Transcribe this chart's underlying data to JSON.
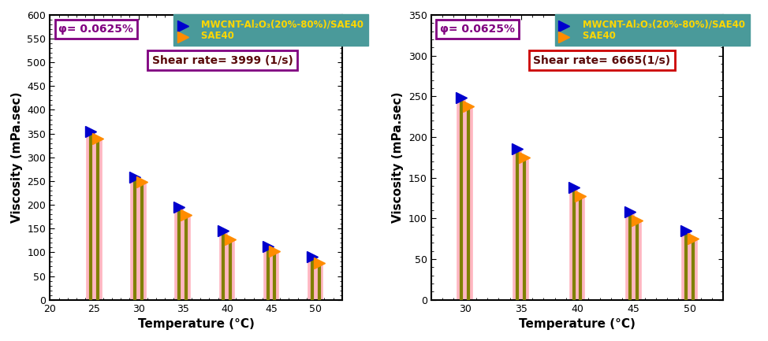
{
  "plot1": {
    "title": "Shear rate= 3999 (1/s)",
    "shear_rate_box_color": "#800080",
    "temperatures": [
      25,
      30,
      35,
      40,
      45,
      50
    ],
    "nanofluid_values": [
      355,
      258,
      195,
      145,
      113,
      90
    ],
    "basefluid_values": [
      340,
      248,
      178,
      127,
      103,
      78
    ],
    "xlim": [
      20,
      53
    ],
    "ylim": [
      0,
      600
    ],
    "yticks": [
      0,
      50,
      100,
      150,
      200,
      250,
      300,
      350,
      400,
      450,
      500,
      550,
      600
    ],
    "xticks": [
      20,
      25,
      30,
      35,
      40,
      45,
      50
    ]
  },
  "plot2": {
    "title": "Shear rate= 6665(1/s)",
    "shear_rate_box_color": "#cc0000",
    "temperatures": [
      30,
      35,
      40,
      45,
      50
    ],
    "nanofluid_values": [
      248,
      185,
      138,
      108,
      85
    ],
    "basefluid_values": [
      238,
      175,
      127,
      97,
      75
    ],
    "xlim": [
      27,
      53
    ],
    "ylim": [
      0,
      350
    ],
    "yticks": [
      0,
      50,
      100,
      150,
      200,
      250,
      300,
      350
    ],
    "xticks": [
      30,
      35,
      40,
      45,
      50
    ]
  },
  "phi_label": "φ= 0.0625%",
  "phi_box_color": "#800080",
  "legend_bg_color": "#4a9a9a",
  "legend_text_nf": "MWCNT-Al₂O₃(20%-80%)/SAE40",
  "legend_text_base": "SAE40",
  "nanofluid_color_line": "#ff8c00",
  "basefluid_color_line": "#808000",
  "nanofluid_marker_color": "#0000cd",
  "nanofluid_marker2_color": "#ff8c00",
  "line_pink": "#ffb6c1",
  "xlabel": "Temperature (°C)",
  "ylabel": "Viscosity (mPa.sec)",
  "fig_bg": "#ffffff",
  "stem_linewidth": 4.5,
  "inner_linewidth": 2.5
}
